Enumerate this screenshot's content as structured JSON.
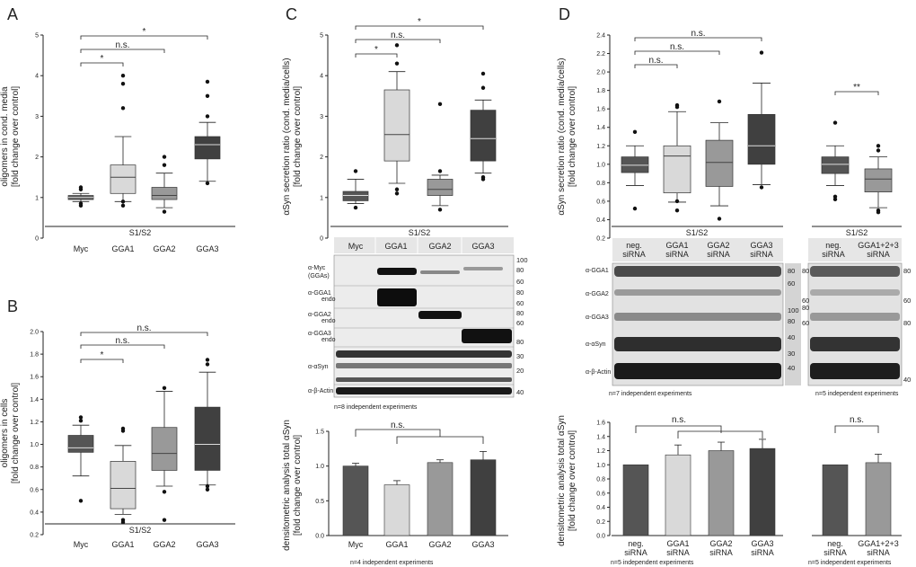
{
  "figure": {
    "A": {
      "letter": "A",
      "ylabel": [
        "oligomers in cond. media",
        "[fold change over control]"
      ],
      "xlabels": [
        "Myc",
        "GGA1",
        "GGA2",
        "GGA3"
      ],
      "yticks": [
        "0",
        "1",
        "2",
        "3",
        "4",
        "5"
      ],
      "footer": "S1/S2",
      "sig": [
        {
          "label": "*"
        },
        {
          "label": "n.s."
        },
        {
          "label": "*"
        }
      ]
    },
    "B": {
      "letter": "B",
      "ylabel": [
        "oligomers in cells",
        "[fold change over control]"
      ],
      "xlabels": [
        "Myc",
        "GGA1",
        "GGA2",
        "GGA3"
      ],
      "yticks": [
        "0.2",
        "0.4",
        "0.6",
        "0.8",
        "1.0",
        "1.2",
        "1.4",
        "1.6",
        "1.8",
        "2.0"
      ],
      "footer": "S1/S2",
      "sig": [
        {
          "label": "*"
        },
        {
          "label": "n.s."
        },
        {
          "label": "n.s."
        }
      ]
    },
    "C": {
      "letter": "C",
      "ylabel": [
        "αSyn secretion ratio (cond. media/cells)",
        "[fold change over control]"
      ],
      "xlabels": [
        "Myc",
        "GGA1",
        "GGA2",
        "GGA3"
      ],
      "yticks": [
        "0",
        "1",
        "2",
        "3",
        "4",
        "5"
      ],
      "footer": "S1/S2",
      "sig": [
        {
          "label": "*"
        },
        {
          "label": "n.s."
        },
        {
          "label": "*"
        }
      ],
      "blot_header": [
        "Myc",
        "GGA1",
        "GGA2",
        "GGA3"
      ],
      "blot_rows": [
        {
          "label": "α-Myc",
          "sub": "(GGAs)"
        },
        {
          "label": "α-GGA1",
          "sub": "endo"
        },
        {
          "label": "α-GGA2",
          "sub": "endo"
        },
        {
          "label": "α-GGA3",
          "sub": "endo"
        },
        {
          "label": "α-αSyn",
          "sub": ""
        },
        {
          "label": "α-β-Actin",
          "sub": ""
        }
      ],
      "blot_mw": [
        "100",
        "80",
        "60",
        "80",
        "60",
        "80",
        "60",
        "80",
        "30",
        "20",
        "40"
      ],
      "blot_note": "n=8 independent experiments",
      "densito_ylabel": [
        "densitometric analysis total αSyn",
        "[fold change over control]"
      ],
      "densito_yticks": [
        "0.0",
        "0.5",
        "1.0",
        "1.5"
      ],
      "densito_xlabels": [
        "Myc",
        "GGA1",
        "GGA2",
        "GGA3"
      ],
      "densito_sig": "n.s.",
      "densito_note": "n=4 independent experiments"
    },
    "D": {
      "letter": "D",
      "ylabel": [
        "αSyn secretion ratio (cond. media/cells)",
        "[fold change over control]"
      ],
      "yticks": [
        "0.2",
        "0.4",
        "0.6",
        "0.8",
        "1.0",
        "1.2",
        "1.4",
        "1.6",
        "1.8",
        "2.0",
        "2.2",
        "2.4"
      ],
      "sig_left": [
        {
          "label": "n.s."
        },
        {
          "label": "n.s."
        },
        {
          "label": "n.s."
        }
      ],
      "sig_right": "**",
      "footer": "S1/S2",
      "blot_header_left": [
        [
          "neg.",
          "siRNA"
        ],
        [
          "GGA1",
          "siRNA"
        ],
        [
          "GGA2",
          "siRNA"
        ],
        [
          "GGA3",
          "siRNA"
        ]
      ],
      "blot_header_right": [
        [
          "neg.",
          "siRNA"
        ],
        [
          "GGA1+2+3",
          "siRNA"
        ]
      ],
      "blot_rows": [
        "α-GGA1",
        "α-GGA2",
        "α-GGA3",
        "α-αSyn",
        "α-β-Actin"
      ],
      "blot_mw_mid": [
        "80",
        "60",
        "100",
        "80",
        "40",
        "30",
        "40"
      ],
      "blot_mw_mid2": [
        "80",
        "60",
        "80",
        "60"
      ],
      "blot_mw_right": [
        "80",
        "60",
        "80",
        "40"
      ],
      "blot_note_left": "n=7 independent experiments",
      "blot_note_right": "n=5 independent experiments",
      "densito_ylabel": [
        "densitometric analysis total αSyn",
        "[fold change over control]"
      ],
      "densito_yticks": [
        "0.0",
        "0.2",
        "0.4",
        "0.6",
        "0.8",
        "1.0",
        "1.2",
        "1.4",
        "1.6"
      ],
      "densito_xlabels_left": [
        [
          "neg.",
          "siRNA"
        ],
        [
          "GGA1",
          "siRNA"
        ],
        [
          "GGA2",
          "siRNA"
        ],
        [
          "GGA3",
          "siRNA"
        ]
      ],
      "densito_xlabels_right": [
        [
          "neg.",
          "siRNA"
        ],
        [
          "GGA1+2+3",
          "siRNA"
        ]
      ],
      "densito_sig_left": "n.s.",
      "densito_sig_right": "n.s.",
      "densito_note_left": "n=5 independent experiments",
      "densito_note_right": "n=5 independent experiments"
    }
  },
  "chart_data": [
    {
      "panel": "A",
      "type": "box",
      "categories": [
        "Myc",
        "GGA1",
        "GGA2",
        "GGA3"
      ],
      "ylabel": "oligomers in cond. media [fold change over control]",
      "ylim": [
        0,
        5
      ],
      "boxes": [
        {
          "whislo": 0.9,
          "q1": 0.95,
          "med": 1.0,
          "q3": 1.05,
          "whishi": 1.1,
          "fliers": [
            0.85,
            1.2,
            1.25,
            0.8
          ],
          "color": "#555555"
        },
        {
          "whislo": 0.9,
          "q1": 1.1,
          "med": 1.5,
          "q3": 1.8,
          "whishi": 2.5,
          "fliers": [
            4.0,
            3.8,
            3.2,
            0.8,
            0.9
          ],
          "color": "#d9d9d9"
        },
        {
          "whislo": 0.75,
          "q1": 0.95,
          "med": 1.05,
          "q3": 1.25,
          "whishi": 1.6,
          "fliers": [
            2.0,
            1.8,
            0.65
          ],
          "color": "#999999"
        },
        {
          "whislo": 1.4,
          "q1": 1.95,
          "med": 2.3,
          "q3": 2.5,
          "whishi": 2.85,
          "fliers": [
            3.85,
            3.5,
            3.0,
            1.35
          ],
          "color": "#404040"
        }
      ]
    },
    {
      "panel": "B",
      "type": "box",
      "categories": [
        "Myc",
        "GGA1",
        "GGA2",
        "GGA3"
      ],
      "ylabel": "oligomers in cells [fold change over control]",
      "ylim": [
        0.2,
        2.0
      ],
      "boxes": [
        {
          "whislo": 0.72,
          "q1": 0.93,
          "med": 0.97,
          "q3": 1.08,
          "whishi": 1.17,
          "fliers": [
            1.24,
            1.21,
            0.5
          ],
          "color": "#555555"
        },
        {
          "whislo": 0.38,
          "q1": 0.43,
          "med": 0.61,
          "q3": 0.85,
          "whishi": 0.99,
          "fliers": [
            1.14,
            1.12,
            0.33,
            0.31
          ],
          "color": "#d9d9d9"
        },
        {
          "whislo": 0.63,
          "q1": 0.77,
          "med": 0.92,
          "q3": 1.15,
          "whishi": 1.47,
          "fliers": [
            1.5,
            0.58,
            0.33
          ],
          "color": "#999999"
        },
        {
          "whislo": 0.64,
          "q1": 0.77,
          "med": 1.0,
          "q3": 1.33,
          "whishi": 1.64,
          "fliers": [
            1.75,
            1.71,
            0.63,
            0.6
          ],
          "color": "#404040"
        }
      ]
    },
    {
      "panel": "C-upper",
      "type": "box",
      "categories": [
        "Myc",
        "GGA1",
        "GGA2",
        "GGA3"
      ],
      "ylabel": "αSyn secretion ratio (cond. media/cells) [fold change over control]",
      "ylim": [
        0,
        5
      ],
      "boxes": [
        {
          "whislo": 0.85,
          "q1": 0.92,
          "med": 1.05,
          "q3": 1.15,
          "whishi": 1.45,
          "fliers": [
            1.65,
            0.75
          ],
          "color": "#555555"
        },
        {
          "whislo": 1.35,
          "q1": 1.9,
          "med": 2.55,
          "q3": 3.65,
          "whishi": 4.1,
          "fliers": [
            4.75,
            4.3,
            1.2,
            1.1
          ],
          "color": "#d9d9d9"
        },
        {
          "whislo": 0.8,
          "q1": 1.05,
          "med": 1.2,
          "q3": 1.45,
          "whishi": 1.55,
          "fliers": [
            3.3,
            1.65,
            0.7
          ],
          "color": "#999999"
        },
        {
          "whislo": 1.6,
          "q1": 1.9,
          "med": 2.45,
          "q3": 3.15,
          "whishi": 3.4,
          "fliers": [
            4.05,
            3.7,
            1.5,
            1.45
          ],
          "color": "#404040"
        }
      ]
    },
    {
      "panel": "C-lower",
      "type": "bar",
      "categories": [
        "Myc",
        "GGA1",
        "GGA2",
        "GGA3"
      ],
      "ylabel": "densitometric analysis total αSyn [fold change over control]",
      "ylim": [
        0,
        1.5
      ],
      "values": [
        1.0,
        0.73,
        1.05,
        1.09
      ],
      "errors": [
        0.04,
        0.06,
        0.04,
        0.12
      ],
      "colors": [
        "#555555",
        "#d9d9d9",
        "#999999",
        "#404040"
      ]
    },
    {
      "panel": "D-upper",
      "type": "box",
      "categories": [
        "neg. siRNA",
        "GGA1 siRNA",
        "GGA2 siRNA",
        "GGA3 siRNA",
        "neg. siRNA",
        "GGA1+2+3 siRNA"
      ],
      "ylabel": "αSyn secretion ratio (cond. media/cells) [fold change over control]",
      "ylim": [
        0.2,
        2.4
      ],
      "boxes": [
        {
          "whislo": 0.77,
          "q1": 0.91,
          "med": 0.99,
          "q3": 1.08,
          "whishi": 1.2,
          "fliers": [
            1.35,
            0.52
          ],
          "color": "#555555"
        },
        {
          "whislo": 0.59,
          "q1": 0.69,
          "med": 1.09,
          "q3": 1.2,
          "whishi": 1.57,
          "fliers": [
            1.64,
            1.62,
            0.6,
            0.5
          ],
          "color": "#d9d9d9"
        },
        {
          "whislo": 0.55,
          "q1": 0.76,
          "med": 1.02,
          "q3": 1.26,
          "whishi": 1.45,
          "fliers": [
            1.68,
            0.41
          ],
          "color": "#999999"
        },
        {
          "whislo": 0.78,
          "q1": 1.0,
          "med": 1.2,
          "q3": 1.54,
          "whishi": 1.88,
          "fliers": [
            2.21,
            0.75
          ],
          "color": "#404040"
        },
        {
          "whislo": 0.77,
          "q1": 0.9,
          "med": 1.0,
          "q3": 1.08,
          "whishi": 1.2,
          "fliers": [
            1.45,
            0.65,
            0.62
          ],
          "color": "#555555"
        },
        {
          "whislo": 0.53,
          "q1": 0.7,
          "med": 0.84,
          "q3": 0.95,
          "whishi": 1.08,
          "fliers": [
            1.2,
            1.15,
            0.5,
            0.48
          ],
          "color": "#999999"
        }
      ]
    },
    {
      "panel": "D-lower",
      "type": "bar",
      "categories": [
        "neg. siRNA",
        "GGA1 siRNA",
        "GGA2 siRNA",
        "GGA3 siRNA",
        "neg. siRNA",
        "GGA1+2+3 siRNA"
      ],
      "ylabel": "densitometric analysis total αSyn [fold change over control]",
      "ylim": [
        0,
        1.6
      ],
      "values": [
        1.0,
        1.14,
        1.2,
        1.23,
        1.0,
        1.03
      ],
      "errors": [
        0.0,
        0.14,
        0.12,
        0.13,
        0.0,
        0.12
      ],
      "colors": [
        "#555555",
        "#d9d9d9",
        "#999999",
        "#404040",
        "#555555",
        "#999999"
      ]
    }
  ]
}
